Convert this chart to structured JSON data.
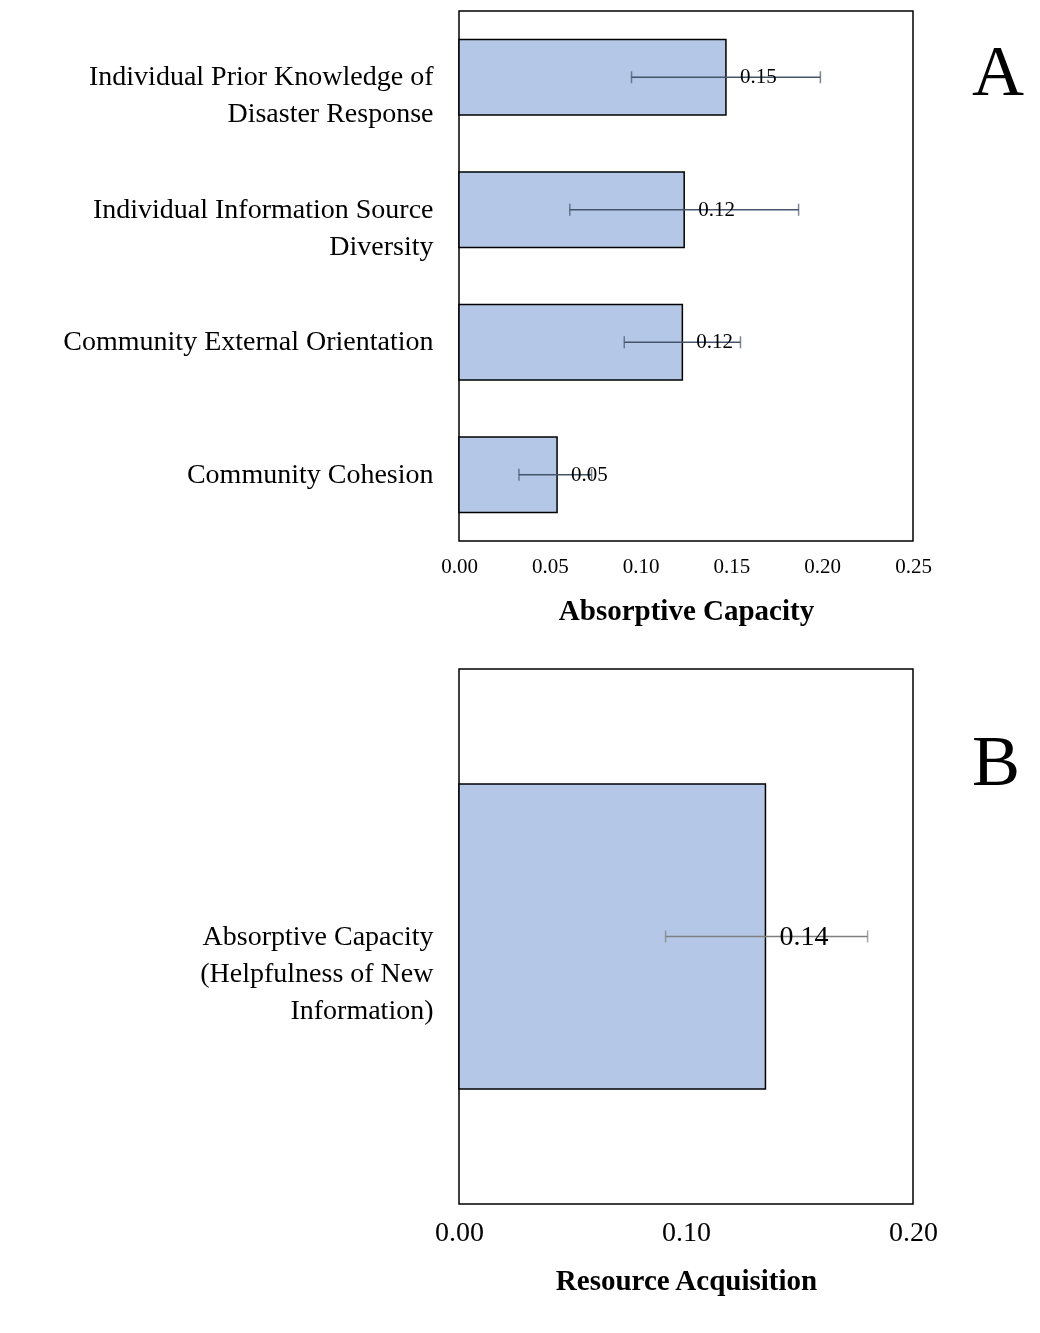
{
  "chart_data": [
    {
      "type": "bar",
      "orientation": "horizontal",
      "categories": [
        "Individual Prior Knowledge of Disaster Response",
        "Individual Information Source Diversity",
        "Community External Orientation",
        "Community Cohesion"
      ],
      "values": [
        0.147,
        0.124,
        0.123,
        0.054
      ],
      "colors": [
        "#b4c7e7",
        "#b4c7e7",
        "#b4c7e7",
        "#b4c7e7"
      ],
      "errors": [
        [
          0.095,
          0.199
        ],
        [
          0.061,
          0.187
        ],
        [
          0.091,
          0.155
        ],
        [
          0.033,
          0.073
        ]
      ],
      "value_labels": [
        "0.15",
        "0.12",
        "0.12",
        "0.05"
      ],
      "xlabel": "Absorptive Capacity",
      "xlim": [
        0,
        0.25
      ],
      "xticks": [
        {
          "value": 0,
          "label": "0.00"
        },
        {
          "value": 0.05,
          "label": "0.05"
        },
        {
          "value": 0.1,
          "label": "0.10"
        },
        {
          "value": 0.15,
          "label": "0.15"
        },
        {
          "value": 0.2,
          "label": "0.20"
        },
        {
          "value": 0.25,
          "label": "0.25"
        }
      ],
      "grid": false,
      "annotations": [
        "A"
      ]
    },
    {
      "type": "bar",
      "orientation": "horizontal",
      "categories": [
        "Absorptive Capacity (Helpfulness of New Information)"
      ],
      "values": [
        0.135
      ],
      "colors": [
        "#b4c7e7"
      ],
      "errors": [
        [
          0.091,
          0.18
        ]
      ],
      "value_labels": [
        "0.14"
      ],
      "xlabel": "Resource Acquisition",
      "xlim": [
        0,
        0.2
      ],
      "xticks": [
        {
          "value": 0,
          "label": "0.00"
        },
        {
          "value": 0.1,
          "label": "0.10"
        },
        {
          "value": 0.2,
          "label": "0.20"
        }
      ],
      "grid": false,
      "annotations": [
        "B"
      ]
    }
  ]
}
